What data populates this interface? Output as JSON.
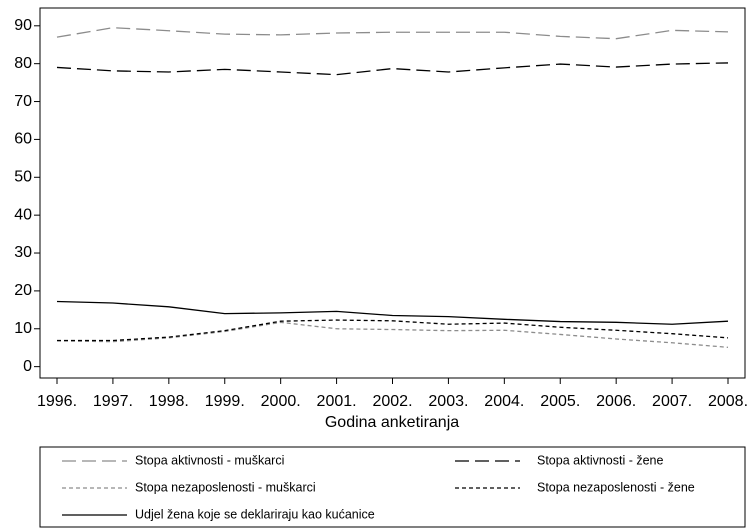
{
  "chart_data": {
    "type": "line",
    "x_label": "Godina anketiranja",
    "categories": [
      "1996.",
      "1997.",
      "1998.",
      "1999.",
      "2000.",
      "2001.",
      "2002.",
      "2003.",
      "2004.",
      "2005.",
      "2006.",
      "2007.",
      "2008."
    ],
    "series": [
      {
        "name": "Stopa aktivnosti - muškarci",
        "color": "#8c8c8c",
        "line_style": "long-dash",
        "values": [
          87,
          89.5,
          88.7,
          87.8,
          87.6,
          88.1,
          88.3,
          88.3,
          88.3,
          87.2,
          86.6,
          88.8,
          88.4
        ]
      },
      {
        "name": "Stopa aktivnosti - žene",
        "color": "#000000",
        "line_style": "long-dash",
        "values": [
          79,
          78.1,
          77.8,
          78.5,
          77.8,
          77.1,
          78.7,
          77.8,
          78.9,
          79.9,
          79.1,
          79.9,
          80.2
        ]
      },
      {
        "name": "Stopa nezaposlenosti - muškarci",
        "color": "#8c8c8c",
        "line_style": "short-dash",
        "values": [
          6.8,
          6.6,
          7.6,
          9.3,
          11.7,
          10,
          9.8,
          9.5,
          9.6,
          8.5,
          7.3,
          6.3,
          5.1
        ]
      },
      {
        "name": "Stopa nezaposlenosti - žene",
        "color": "#000000",
        "line_style": "short-dash",
        "values": [
          6.9,
          6.9,
          7.8,
          9.5,
          12,
          12.3,
          12.1,
          11.2,
          11.5,
          10.4,
          9.6,
          8.7,
          7.6
        ]
      },
      {
        "name": "Udjel žena koje se deklariraju kao kućanice",
        "color": "#000000",
        "line_style": "solid",
        "values": [
          17.2,
          16.8,
          15.8,
          14,
          14.2,
          14.6,
          13.5,
          13.2,
          12.5,
          11.9,
          11.7,
          11.2,
          12
        ]
      }
    ],
    "ylim": [
      -3,
      94.7
    ],
    "yticks": [
      0,
      10,
      20,
      30,
      40,
      50,
      60,
      70,
      80,
      90
    ],
    "legend_position": "bottom"
  }
}
